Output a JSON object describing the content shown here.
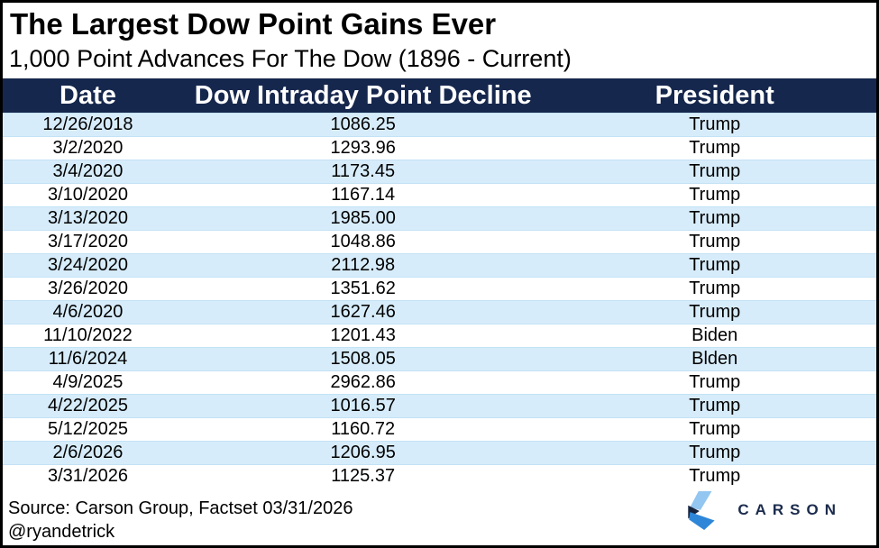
{
  "title": "The Largest Dow Point Gains Ever",
  "subtitle": "1,000 Point Advances For The Dow (1896 - Current)",
  "table": {
    "columns": [
      "Date",
      "Dow Intraday Point Decline",
      "President"
    ],
    "rows": [
      {
        "date": "12/26/2018",
        "points": "1086.25",
        "president": "Trump"
      },
      {
        "date": "3/2/2020",
        "points": "1293.96",
        "president": "Trump"
      },
      {
        "date": "3/4/2020",
        "points": "1173.45",
        "president": "Trump"
      },
      {
        "date": "3/10/2020",
        "points": "1167.14",
        "president": "Trump"
      },
      {
        "date": "3/13/2020",
        "points": "1985.00",
        "president": "Trump"
      },
      {
        "date": "3/17/2020",
        "points": "1048.86",
        "president": "Trump"
      },
      {
        "date": "3/24/2020",
        "points": "2112.98",
        "president": "Trump"
      },
      {
        "date": "3/26/2020",
        "points": "1351.62",
        "president": "Trump"
      },
      {
        "date": "4/6/2020",
        "points": "1627.46",
        "president": "Trump"
      },
      {
        "date": "11/10/2022",
        "points": "1201.43",
        "president": "Biden"
      },
      {
        "date": "11/6/2024",
        "points": "1508.05",
        "president": "Blden"
      },
      {
        "date": "4/9/2025",
        "points": "2962.86",
        "president": "Trump"
      },
      {
        "date": "4/22/2025",
        "points": "1016.57",
        "president": "Trump"
      },
      {
        "date": "5/12/2025",
        "points": "1160.72",
        "president": "Trump"
      },
      {
        "date": "2/6/2026",
        "points": "1206.95",
        "president": "Trump"
      },
      {
        "date": "3/31/2026",
        "points": "1125.37",
        "president": "Trump"
      }
    ]
  },
  "footer": {
    "source_line1": "Source: Carson Group, Factset 03/31/2026",
    "source_line2": "@ryandetrick",
    "logo_text": "CARSON"
  },
  "colors": {
    "header_bg": "#16274D",
    "header_text": "#FFFFFF",
    "row_alt_bg": "#D7ECFA",
    "logo_light_blue": "#93C6F0",
    "logo_navy": "#17243E",
    "logo_blue": "#2E86D8",
    "logo_text_color": "#1B2B4C"
  },
  "chart_data": {
    "type": "table",
    "title": "The Largest Dow Point Gains Ever",
    "subtitle": "1,000 Point Advances For The Dow (1896 - Current)",
    "columns": [
      "Date",
      "Dow Intraday Point Decline",
      "President"
    ],
    "rows": [
      [
        "12/26/2018",
        1086.25,
        "Trump"
      ],
      [
        "3/2/2020",
        1293.96,
        "Trump"
      ],
      [
        "3/4/2020",
        1173.45,
        "Trump"
      ],
      [
        "3/10/2020",
        1167.14,
        "Trump"
      ],
      [
        "3/13/2020",
        1985.0,
        "Trump"
      ],
      [
        "3/17/2020",
        1048.86,
        "Trump"
      ],
      [
        "3/24/2020",
        2112.98,
        "Trump"
      ],
      [
        "3/26/2020",
        1351.62,
        "Trump"
      ],
      [
        "4/6/2020",
        1627.46,
        "Trump"
      ],
      [
        "11/10/2022",
        1201.43,
        "Biden"
      ],
      [
        "11/6/2024",
        1508.05,
        "Blden"
      ],
      [
        "4/9/2025",
        2962.86,
        "Trump"
      ],
      [
        "4/22/2025",
        1016.57,
        "Trump"
      ],
      [
        "5/12/2025",
        1160.72,
        "Trump"
      ],
      [
        "2/6/2026",
        1206.95,
        "Trump"
      ],
      [
        "3/31/2026",
        1125.37,
        "Trump"
      ]
    ],
    "source": "Source: Carson Group, Factset 03/31/2026",
    "attribution": "@ryandetrick",
    "layout": {
      "zebra_striping": true,
      "stripe_starts_on_first_row": true
    }
  }
}
